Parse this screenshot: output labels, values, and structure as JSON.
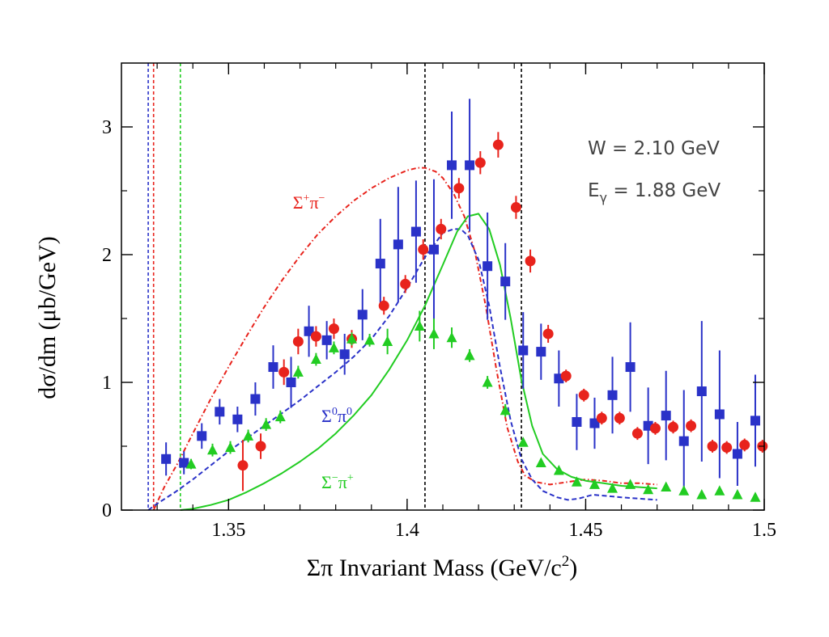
{
  "chart_data": {
    "type": "scatter",
    "title": "",
    "xlabel_main": "Σπ Invariant Mass (GeV/c",
    "xlabel_sup": "2",
    "xlabel_end": ")",
    "ylabel": "dσ/dm (μb/GeV)",
    "xlim": [
      1.32,
      1.5
    ],
    "ylim": [
      0,
      3.5
    ],
    "xticks": [
      {
        "value": 1.35,
        "label": "1.35"
      },
      {
        "value": 1.4,
        "label": "1.4"
      },
      {
        "value": 1.45,
        "label": "1.45"
      },
      {
        "value": 1.5,
        "label": "1.5"
      }
    ],
    "yticks": [
      {
        "value": 0,
        "label": "0"
      },
      {
        "value": 1,
        "label": "1"
      },
      {
        "value": 2,
        "label": "2"
      },
      {
        "value": 3,
        "label": "3"
      }
    ],
    "annotations": {
      "w_text": "W = 2.10 GeV",
      "e_base": "E",
      "e_sub": "γ",
      "e_rest": " = 1.88 GeV"
    },
    "curve_labels": [
      {
        "base": "Σ",
        "sup": "+",
        "mid": "π",
        "sup2": "−",
        "color": "#e8231c",
        "x": 1.368,
        "y": 2.36
      },
      {
        "base": "Σ",
        "sup": "0",
        "mid": "π",
        "sup2": "0",
        "color": "#2a32c8",
        "x": 1.376,
        "y": 0.69
      },
      {
        "base": "Σ",
        "sup": "−",
        "mid": "π",
        "sup2": "+",
        "color": "#22cc22",
        "x": 1.376,
        "y": 0.17
      }
    ],
    "vertical_lines": [
      {
        "x": 1.3275,
        "color": "#2a32c8"
      },
      {
        "x": 1.329,
        "color": "#e8231c"
      },
      {
        "x": 1.3365,
        "color": "#22cc22"
      },
      {
        "x": 1.405,
        "color": "#000000"
      },
      {
        "x": 1.432,
        "color": "#000000"
      }
    ],
    "series": [
      {
        "color": "#2a32c8",
        "marker": "square",
        "x": [
          1.3325,
          1.3375,
          1.3425,
          1.3475,
          1.3525,
          1.3575,
          1.3625,
          1.3675,
          1.3725,
          1.3775,
          1.3825,
          1.3875,
          1.3925,
          1.3975,
          1.4025,
          1.4075,
          1.4125,
          1.4175,
          1.4225,
          1.4275,
          1.4325,
          1.4375,
          1.4425,
          1.4475,
          1.4525,
          1.4575,
          1.4625,
          1.4675,
          1.4725,
          1.4775,
          1.4825,
          1.4875,
          1.4925,
          1.4975
        ],
        "y": [
          0.4,
          0.37,
          0.58,
          0.77,
          0.71,
          0.87,
          1.12,
          1.0,
          1.4,
          1.33,
          1.22,
          1.53,
          1.93,
          2.08,
          2.18,
          2.04,
          2.7,
          2.7,
          1.91,
          1.79,
          1.25,
          1.24,
          1.03,
          0.69,
          0.68,
          0.9,
          1.12,
          0.66,
          0.74,
          0.54,
          0.93,
          0.75,
          0.44,
          0.7
        ],
        "err": [
          0.13,
          0.09,
          0.1,
          0.1,
          0.1,
          0.13,
          0.17,
          0.2,
          0.2,
          0.15,
          0.16,
          0.2,
          0.35,
          0.45,
          0.4,
          0.55,
          0.42,
          0.52,
          0.42,
          0.3,
          0.3,
          0.22,
          0.22,
          0.22,
          0.2,
          0.3,
          0.35,
          0.3,
          0.35,
          0.4,
          0.55,
          0.5,
          0.25,
          0.36
        ]
      },
      {
        "color": "#e8231c",
        "marker": "circle",
        "x": [
          1.354,
          1.359,
          1.3655,
          1.3695,
          1.3745,
          1.3795,
          1.3845,
          1.3935,
          1.3995,
          1.4045,
          1.4095,
          1.4145,
          1.4205,
          1.4255,
          1.4305,
          1.4345,
          1.4395,
          1.4445,
          1.4495,
          1.4545,
          1.4595,
          1.4645,
          1.4695,
          1.4745,
          1.4795,
          1.4855,
          1.4895,
          1.4945,
          1.4995
        ],
        "y": [
          0.35,
          0.5,
          1.08,
          1.32,
          1.36,
          1.42,
          1.34,
          1.6,
          1.77,
          2.04,
          2.2,
          2.52,
          2.72,
          2.86,
          2.37,
          1.95,
          1.38,
          1.05,
          0.9,
          0.72,
          0.72,
          0.6,
          0.64,
          0.65,
          0.66,
          0.5,
          0.49,
          0.51,
          0.5
        ],
        "err": [
          0.2,
          0.1,
          0.1,
          0.1,
          0.08,
          0.08,
          0.07,
          0.07,
          0.07,
          0.08,
          0.08,
          0.08,
          0.09,
          0.1,
          0.09,
          0.09,
          0.07,
          0.05,
          0.05,
          0.05,
          0.05,
          0.05,
          0.05,
          0.05,
          0.05,
          0.05,
          0.05,
          0.05,
          0.05
        ]
      },
      {
        "color": "#22cc22",
        "marker": "triangle",
        "x": [
          1.3395,
          1.3455,
          1.3505,
          1.3555,
          1.3605,
          1.3645,
          1.3695,
          1.3745,
          1.3795,
          1.3845,
          1.3895,
          1.3945,
          1.4035,
          1.4075,
          1.4125,
          1.4175,
          1.4225,
          1.4275,
          1.4325,
          1.4375,
          1.4425,
          1.4475,
          1.4525,
          1.4575,
          1.4625,
          1.4675,
          1.4725,
          1.4775,
          1.4825,
          1.4875,
          1.4925,
          1.4975
        ],
        "y": [
          0.36,
          0.47,
          0.49,
          0.58,
          0.67,
          0.73,
          1.08,
          1.18,
          1.27,
          1.34,
          1.33,
          1.32,
          1.44,
          1.38,
          1.35,
          1.21,
          1.0,
          0.78,
          0.53,
          0.37,
          0.31,
          0.22,
          0.2,
          0.17,
          0.2,
          0.16,
          0.18,
          0.15,
          0.12,
          0.15,
          0.12,
          0.1
        ],
        "err": [
          0.04,
          0.05,
          0.05,
          0.05,
          0.05,
          0.05,
          0.05,
          0.05,
          0.05,
          0.05,
          0.05,
          0.1,
          0.12,
          0.12,
          0.08,
          0.05,
          0.05,
          0.05,
          0.03,
          0.03,
          0.03,
          0.03,
          0.03,
          0.03,
          0.03,
          0.03,
          0.03,
          0.03,
          0.03,
          0.03,
          0.03,
          0.03
        ]
      }
    ],
    "curves": [
      {
        "color": "#e8231c",
        "style": "dashdot",
        "x": [
          1.329,
          1.332,
          1.336,
          1.34,
          1.345,
          1.35,
          1.355,
          1.36,
          1.365,
          1.37,
          1.375,
          1.38,
          1.385,
          1.39,
          1.395,
          1.4,
          1.403,
          1.405,
          1.408,
          1.41,
          1.413,
          1.416,
          1.419,
          1.422,
          1.425,
          1.428,
          1.431,
          1.433,
          1.436,
          1.44,
          1.445,
          1.45,
          1.455,
          1.46,
          1.465,
          1.47
        ],
        "y": [
          0.0,
          0.18,
          0.38,
          0.6,
          0.87,
          1.12,
          1.36,
          1.59,
          1.8,
          1.99,
          2.16,
          2.3,
          2.42,
          2.52,
          2.6,
          2.66,
          2.68,
          2.68,
          2.65,
          2.6,
          2.48,
          2.3,
          2.02,
          1.6,
          1.1,
          0.65,
          0.38,
          0.27,
          0.22,
          0.2,
          0.22,
          0.24,
          0.23,
          0.21,
          0.21,
          0.2
        ]
      },
      {
        "color": "#2a32c8",
        "style": "dashed",
        "x": [
          1.3275,
          1.33,
          1.335,
          1.34,
          1.345,
          1.35,
          1.355,
          1.36,
          1.365,
          1.37,
          1.375,
          1.38,
          1.385,
          1.39,
          1.395,
          1.4,
          1.405,
          1.41,
          1.413,
          1.415,
          1.417,
          1.42,
          1.423,
          1.426,
          1.429,
          1.432,
          1.435,
          1.438,
          1.442,
          1.445,
          1.448,
          1.452,
          1.46,
          1.47
        ],
        "y": [
          0.0,
          0.05,
          0.14,
          0.24,
          0.35,
          0.46,
          0.56,
          0.66,
          0.76,
          0.86,
          0.97,
          1.08,
          1.2,
          1.34,
          1.52,
          1.74,
          1.98,
          2.17,
          2.2,
          2.2,
          2.15,
          1.96,
          1.6,
          1.12,
          0.7,
          0.4,
          0.24,
          0.15,
          0.1,
          0.08,
          0.09,
          0.12,
          0.1,
          0.08
        ]
      },
      {
        "color": "#22cc22",
        "style": "solid",
        "x": [
          1.3365,
          1.34,
          1.345,
          1.35,
          1.355,
          1.36,
          1.365,
          1.37,
          1.375,
          1.38,
          1.385,
          1.39,
          1.395,
          1.4,
          1.405,
          1.41,
          1.414,
          1.417,
          1.42,
          1.423,
          1.426,
          1.429,
          1.432,
          1.435,
          1.438,
          1.442,
          1.446,
          1.45,
          1.455,
          1.46,
          1.465,
          1.47
        ],
        "y": [
          0.0,
          0.01,
          0.04,
          0.08,
          0.14,
          0.21,
          0.29,
          0.38,
          0.48,
          0.6,
          0.74,
          0.9,
          1.1,
          1.33,
          1.6,
          1.92,
          2.18,
          2.3,
          2.32,
          2.2,
          1.92,
          1.5,
          1.02,
          0.66,
          0.44,
          0.32,
          0.26,
          0.23,
          0.21,
          0.19,
          0.18,
          0.17
        ]
      }
    ]
  }
}
